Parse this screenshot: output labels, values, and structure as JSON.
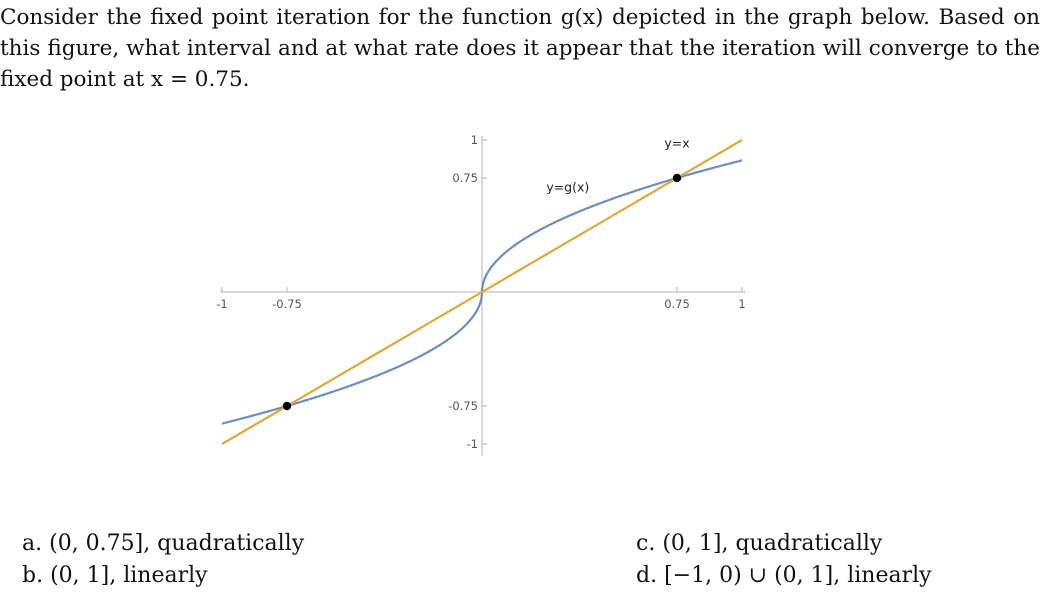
{
  "question": "Consider the fixed point iteration for the function g(x) depicted in the graph below. Based on this figure, what interval and at what rate does it appear that the iteration will converge to the fixed point at x = 0.75.",
  "chart_data": {
    "type": "line",
    "xlim": [
      -1,
      1
    ],
    "ylim": [
      -1,
      1
    ],
    "x_ticks": [
      {
        "value": -1,
        "label": "-1"
      },
      {
        "value": -0.75,
        "label": "-0.75"
      },
      {
        "value": 0.75,
        "label": "0.75"
      },
      {
        "value": 1,
        "label": "1"
      }
    ],
    "y_ticks": [
      {
        "value": 1,
        "label": "1"
      },
      {
        "value": 0.75,
        "label": "0.75"
      },
      {
        "value": -0.75,
        "label": "-0.75"
      },
      {
        "value": -1,
        "label": "-1"
      }
    ],
    "series": [
      {
        "label": "y=g(x)",
        "color": "#6b8fbf",
        "function": "g(x) = sign(x)*0.75*sqrt(|x|/0.75)"
      },
      {
        "label": "y=x",
        "color": "#e0a93a",
        "function": "y = x"
      }
    ],
    "fixed_points": [
      {
        "x": -0.75,
        "y": -0.75
      },
      {
        "x": 0,
        "y": 0
      },
      {
        "x": 0.75,
        "y": 0.75
      }
    ],
    "grid": false
  },
  "choices": [
    {
      "letter": "a.",
      "text": "(0, 0.75], quadratically"
    },
    {
      "letter": "b.",
      "text": "(0, 1], linearly"
    },
    {
      "letter": "c.",
      "text": "(0, 1], quadratically"
    },
    {
      "letter": "d.",
      "text": "[−1, 0) ∪ (0, 1], linearly"
    }
  ]
}
